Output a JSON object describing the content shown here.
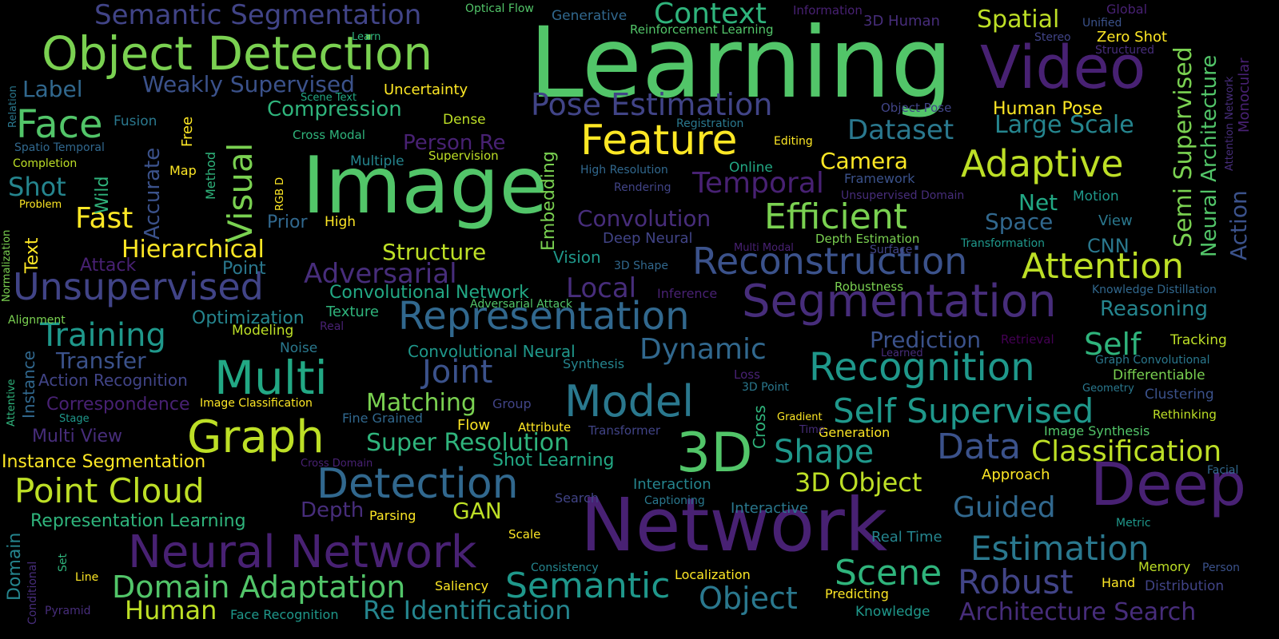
{
  "colors": {
    "background": "#000000",
    "yellow": "#fde725",
    "yellow_green": "#bddf26",
    "light_green": "#7ad151",
    "green": "#52c569",
    "teal_green": "#2fb47c",
    "teal": "#22a884",
    "teal_blue": "#1f988b",
    "blue_teal": "#25858e",
    "blue": "#2a788e",
    "slate_blue": "#31688e",
    "indigo": "#3b528b",
    "deep_indigo": "#414487",
    "purple": "#472d7b",
    "dark_purple": "#482173",
    "deep_purple": "#440154"
  },
  "words": [
    "Learning",
    "Image",
    "Network",
    "Video",
    "Deep",
    "Object Detection",
    "3D",
    "Segmentation",
    "Neural Network",
    "Graph",
    "Multi",
    "Detection",
    "Feature",
    "Model",
    "Representation",
    "Recognition",
    "Reconstruction",
    "Unsupervised",
    "Adaptive",
    "Attention",
    "Efficient",
    "Face",
    "Visual",
    "Semantic",
    "Scene",
    "Estimation",
    "Self Supervised",
    "Robust",
    "Domain Adaptation",
    "Semantic Segmentation",
    "Point Cloud",
    "Pose Estimation",
    "Context",
    "Data",
    "Shape",
    "Classification",
    "Object",
    "Training",
    "Architecture Search",
    "Joint",
    "Re Identification",
    "Dynamic",
    "Temporal",
    "Large Scale",
    "Dataset",
    "Semi Supervised",
    "Local",
    "Fast",
    "3D Object",
    "Guided",
    "Self",
    "Hierarchical",
    "Adversarial",
    "Human",
    "Super Resolution",
    "Neural Architecture",
    "Weakly Supervised",
    "Spatial",
    "Matching",
    "Convolution",
    "Camera",
    "Prediction",
    "Space",
    "Transfer",
    "Structure",
    "Shot",
    "Compression",
    "Person Re",
    "Action",
    "Net",
    "Embedding",
    "Label",
    "Accurate",
    "GAN",
    "Depth",
    "Reasoning",
    "Correspondence",
    "Representation Learning",
    "Instance Segmentation",
    "Text",
    "Shot Learning",
    "Wild",
    "Multi View",
    "Human Pose",
    "Cross",
    "Convolutional Network",
    "Action Recognition",
    "CNN",
    "Prior",
    "Convolutional Neural",
    "Domain",
    "Point",
    "Instance",
    "Optimization",
    "Attack",
    "Vision",
    "Modeling",
    "Texture",
    "Interaction",
    "Interactive",
    "Zero Shot",
    "Real Time",
    "Deep Neural",
    "Uncertainty",
    "Fusion",
    "Multiple",
    "Noise",
    "Generative",
    "Dense",
    "Approach",
    "Tracking",
    "Differentiable",
    "Clustering",
    "Rethinking",
    "Image Synthesis",
    "Generation",
    "Synthesis",
    "Reinforcement Learning",
    "Method",
    "Monocular",
    "Map",
    "Free",
    "Group",
    "Fine Grained",
    "Flow",
    "Memory",
    "Hand",
    "Distribution",
    "Parsing",
    "Localization",
    "Robustness",
    "Framework",
    "Cross Modal",
    "Depth Estimation",
    "Attribute",
    "Transformer",
    "Image Classification",
    "Supervision",
    "Motion",
    "Face Recognition",
    "Predicting",
    "Knowledge",
    "Online",
    "Editing",
    "Registration",
    "High Resolution",
    "Rendering",
    "Unsupervised Domain",
    "Knowledge Distillation",
    "Graph Convolutional",
    "Transformation",
    "Surface",
    "3D Shape",
    "Inference",
    "Adversarial Attack",
    "Completion",
    "Spatio Temporal",
    "Problem",
    "Normalization",
    "Alignment",
    "Attentive",
    "Conditional",
    "Pyramid",
    "Set",
    "Line",
    "Scale",
    "Saliency",
    "Consistency",
    "Captioning",
    "Search",
    "Cross Domain",
    "Metric",
    "Person",
    "Facial",
    "Information",
    "3D Human",
    "Global",
    "Unified",
    "Stereo",
    "Structured",
    "Optical Flow",
    "Learn",
    "Scene Text",
    "Relation",
    "Object Pose",
    "RGB D",
    "3D Point",
    "Loss",
    "Time",
    "Gradient",
    "Retrieval",
    "Learned",
    "Geometry",
    "Stage",
    "Multi Modal",
    "Real",
    "High",
    "Attention Network",
    "View"
  ]
}
